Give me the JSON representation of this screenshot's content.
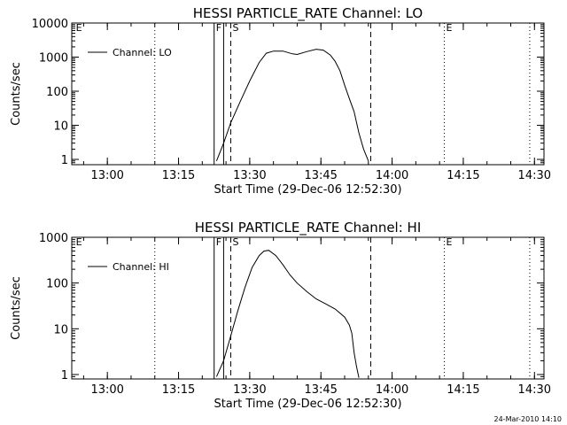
{
  "footer": {
    "timestamp": "24-Mar-2010 14:10"
  },
  "chart_data": [
    {
      "type": "line",
      "title": "HESSI PARTICLE_RATE Channel: LO",
      "xlabel": "Start Time (29-Dec-06 12:52:30)",
      "ylabel": "Counts/sec",
      "yscale": "log",
      "xlim": [
        "12:52:30",
        "14:32:00"
      ],
      "ylim": [
        0.7,
        10000
      ],
      "xticks": [
        "13:00",
        "13:15",
        "13:30",
        "13:45",
        "14:00",
        "14:15",
        "14:30"
      ],
      "yticks": [
        {
          "value": 1,
          "label": "1"
        },
        {
          "value": 10,
          "label": "10"
        },
        {
          "value": 100,
          "label": "100"
        },
        {
          "value": 1000,
          "label": "1000"
        },
        {
          "value": 10000,
          "label": "10000"
        }
      ],
      "legend": {
        "position": "top-left",
        "entries": [
          "Channel: LO"
        ]
      },
      "series": [
        {
          "name": "Channel: LO",
          "x": [
            "13:23:00",
            "13:24:30",
            "13:26:00",
            "13:28:00",
            "13:30:00",
            "13:32:00",
            "13:33:30",
            "13:35:00",
            "13:37:00",
            "13:39:00",
            "13:40:00",
            "13:42:00",
            "13:44:00",
            "13:45:30",
            "13:47:00",
            "13:48:00",
            "13:49:00",
            "13:50:00",
            "13:51:00",
            "13:52:00",
            "13:53:00",
            "13:54:00",
            "13:55:00"
          ],
          "y": [
            0.9,
            3,
            12,
            50,
            200,
            700,
            1300,
            1500,
            1500,
            1250,
            1200,
            1450,
            1700,
            1600,
            1150,
            750,
            400,
            150,
            60,
            25,
            6,
            2,
            0.9
          ]
        }
      ],
      "vlines": [
        {
          "x": "13:10:00",
          "style": "dotted",
          "label": ""
        },
        {
          "x": "13:22:30",
          "style": "solid",
          "label": "F"
        },
        {
          "x": "13:24:30",
          "style": "solid",
          "label": ""
        },
        {
          "x": "13:26:00",
          "style": "dashed",
          "label": "S"
        },
        {
          "x": "13:55:30",
          "style": "dashed",
          "label": ""
        },
        {
          "x": "14:11:00",
          "style": "dotted",
          "label": "E"
        },
        {
          "x": "14:29:00",
          "style": "dotted",
          "label": ""
        },
        {
          "x": "12:53:00",
          "style": "none",
          "label": "E"
        }
      ]
    },
    {
      "type": "line",
      "title": "HESSI PARTICLE_RATE Channel: HI",
      "xlabel": "Start Time (29-Dec-06 12:52:30)",
      "ylabel": "Counts/sec",
      "yscale": "log",
      "xlim": [
        "12:52:30",
        "14:32:00"
      ],
      "ylim": [
        0.8,
        1000
      ],
      "xticks": [
        "13:00",
        "13:15",
        "13:30",
        "13:45",
        "14:00",
        "14:15",
        "14:30"
      ],
      "yticks": [
        {
          "value": 1,
          "label": "1"
        },
        {
          "value": 10,
          "label": "10"
        },
        {
          "value": 100,
          "label": "100"
        },
        {
          "value": 1000,
          "label": "1000"
        }
      ],
      "legend": {
        "position": "top-left",
        "entries": [
          "Channel: HI"
        ]
      },
      "series": [
        {
          "name": "Channel: HI",
          "x": [
            "13:23:00",
            "13:24:30",
            "13:26:00",
            "13:27:30",
            "13:29:00",
            "13:30:30",
            "13:32:00",
            "13:33:00",
            "13:34:00",
            "13:35:30",
            "13:37:00",
            "13:38:30",
            "13:40:00",
            "13:42:00",
            "13:44:00",
            "13:46:00",
            "13:48:00",
            "13:50:00",
            "13:51:00",
            "13:51:30",
            "13:52:00",
            "13:52:30",
            "13:53:00"
          ],
          "y": [
            0.9,
            2,
            7,
            25,
            80,
            220,
            400,
            500,
            520,
            400,
            250,
            150,
            100,
            65,
            45,
            35,
            27,
            18,
            12,
            8,
            3,
            1.5,
            0.85
          ]
        }
      ],
      "vlines": [
        {
          "x": "13:10:00",
          "style": "dotted",
          "label": ""
        },
        {
          "x": "13:22:30",
          "style": "solid",
          "label": "F"
        },
        {
          "x": "13:24:30",
          "style": "solid",
          "label": ""
        },
        {
          "x": "13:26:00",
          "style": "dashed",
          "label": "S"
        },
        {
          "x": "13:55:30",
          "style": "dashed",
          "label": ""
        },
        {
          "x": "14:11:00",
          "style": "dotted",
          "label": "E"
        },
        {
          "x": "14:29:00",
          "style": "dotted",
          "label": ""
        },
        {
          "x": "12:53:00",
          "style": "none",
          "label": "E"
        }
      ]
    }
  ]
}
